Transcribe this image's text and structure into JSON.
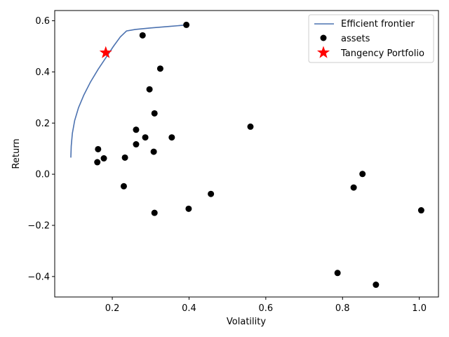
{
  "chart_data": {
    "type": "scatter",
    "title": "",
    "xlabel": "Volatility",
    "ylabel": "Return",
    "xlim": [
      0.05,
      1.05
    ],
    "ylim": [
      -0.48,
      0.64
    ],
    "xticks": [
      0.2,
      0.4,
      0.6,
      0.8,
      1.0
    ],
    "xtick_labels": [
      "0.2",
      "0.4",
      "0.6",
      "0.8",
      "1.0"
    ],
    "yticks": [
      -0.4,
      -0.2,
      0.0,
      0.2,
      0.4,
      0.6
    ],
    "ytick_labels": [
      "−0.4",
      "−0.2",
      "0.0",
      "0.2",
      "0.4",
      "0.6"
    ],
    "grid": false,
    "legend_position": "top-right",
    "series": [
      {
        "name": "Efficient frontier",
        "kind": "line",
        "color": "#4c72b0",
        "x": [
          0.092,
          0.093,
          0.096,
          0.102,
          0.112,
          0.126,
          0.143,
          0.163,
          0.183,
          0.203,
          0.221,
          0.237,
          0.26,
          0.3,
          0.35,
          0.397
        ],
        "y": [
          0.065,
          0.11,
          0.16,
          0.21,
          0.26,
          0.31,
          0.36,
          0.41,
          0.455,
          0.5,
          0.537,
          0.56,
          0.566,
          0.572,
          0.578,
          0.584
        ]
      },
      {
        "name": "assets",
        "kind": "scatter",
        "color": "#000000",
        "x": [
          0.393,
          0.279,
          0.325,
          0.297,
          0.31,
          0.262,
          0.56,
          0.286,
          0.355,
          0.262,
          0.308,
          0.163,
          0.233,
          0.178,
          0.161,
          0.23,
          0.457,
          0.399,
          0.31,
          0.852,
          0.829,
          0.787,
          0.887,
          1.005
        ],
        "y": [
          0.584,
          0.543,
          0.413,
          0.332,
          0.238,
          0.174,
          0.186,
          0.144,
          0.144,
          0.117,
          0.088,
          0.098,
          0.065,
          0.062,
          0.047,
          -0.047,
          -0.077,
          -0.135,
          -0.151,
          0.001,
          -0.052,
          -0.386,
          -0.432,
          -0.141
        ]
      },
      {
        "name": "Tangency Portfolio",
        "kind": "marker",
        "marker": "star",
        "color": "#ff0000",
        "x": [
          0.183
        ],
        "y": [
          0.475
        ]
      }
    ]
  }
}
